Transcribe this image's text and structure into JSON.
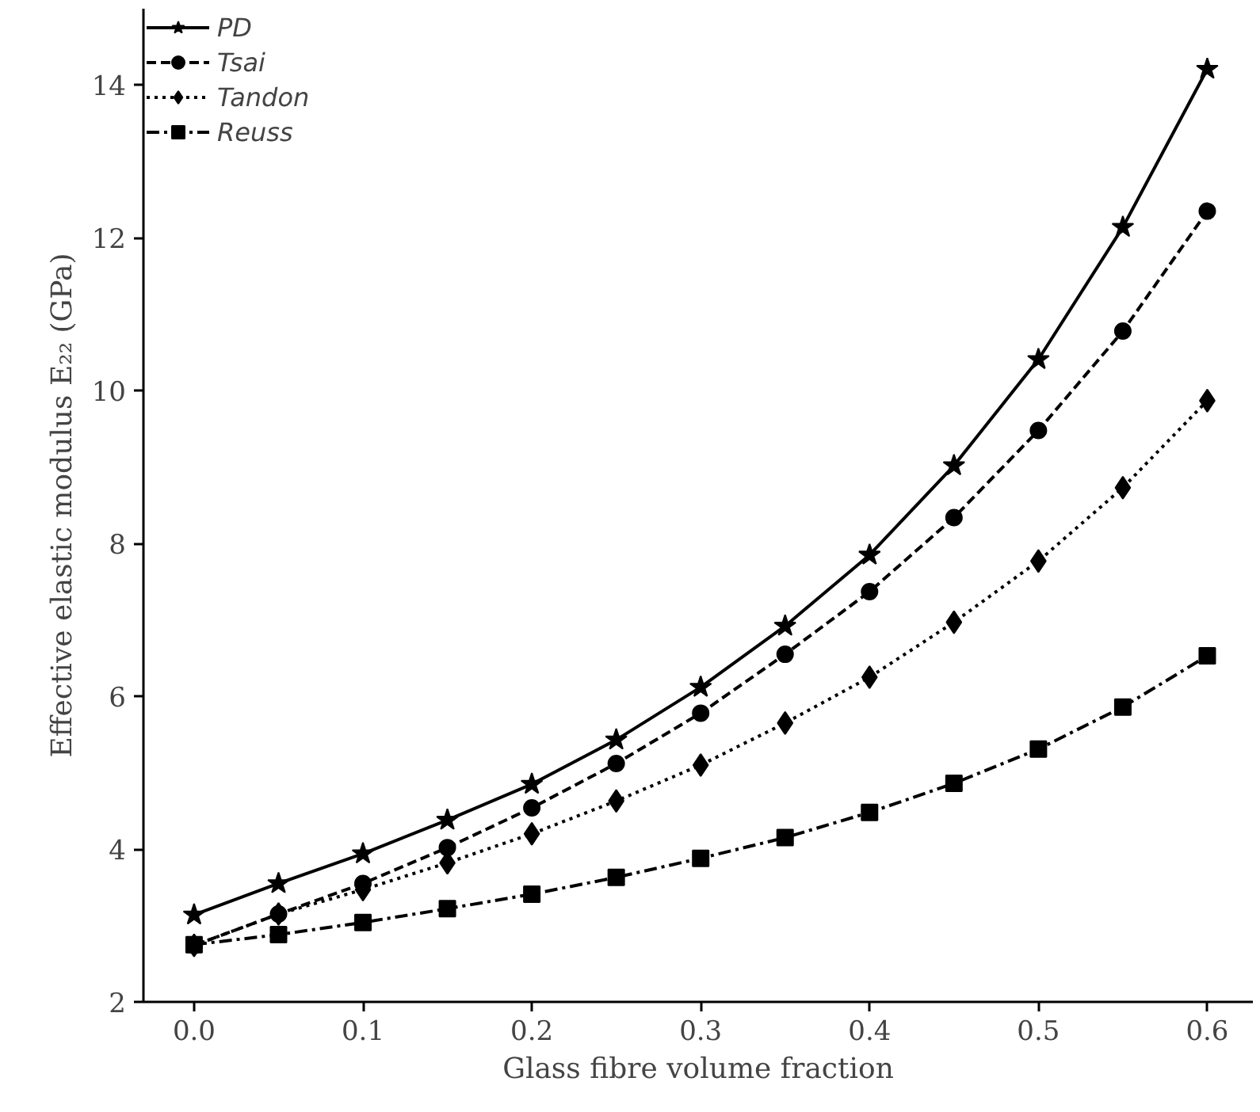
{
  "chart_data": {
    "type": "line",
    "xlabel": "Glass fibre volume fraction",
    "ylabel": "Effective elastic modulus E₂₂ (GPa)",
    "x": [
      0.0,
      0.05,
      0.1,
      0.15,
      0.2,
      0.25,
      0.3,
      0.35,
      0.4,
      0.45,
      0.5,
      0.55,
      0.6
    ],
    "xlim": [
      -0.03,
      0.627
    ],
    "xticks": [
      {
        "value": 0.0,
        "label": "0.0"
      },
      0.1,
      0.2,
      0.3,
      0.4,
      0.5,
      0.6
    ],
    "ylim": [
      2,
      15
    ],
    "yticks": [
      2,
      4,
      6,
      8,
      10,
      12,
      14
    ],
    "grid": false,
    "legend": "top left",
    "series": [
      {
        "name": "PD",
        "color": "#000000",
        "marker": "star",
        "line_style": "solid",
        "values": [
          3.14,
          3.55,
          3.94,
          4.38,
          4.85,
          5.43,
          6.12,
          6.92,
          7.85,
          9.02,
          10.41,
          12.14,
          14.21
        ]
      },
      {
        "name": "Tsai",
        "color": "#000000",
        "marker": "circle",
        "line_style": "dashed",
        "values": [
          2.74,
          3.15,
          3.55,
          4.02,
          4.54,
          5.12,
          5.78,
          6.55,
          7.37,
          8.34,
          9.48,
          10.78,
          12.35
        ]
      },
      {
        "name": "Tandon",
        "color": "#000000",
        "marker": "diamond",
        "line_style": "dotted",
        "values": [
          2.74,
          3.15,
          3.47,
          3.82,
          4.2,
          4.63,
          5.1,
          5.65,
          6.25,
          6.97,
          7.77,
          8.73,
          9.87
        ]
      },
      {
        "name": "Reuss",
        "color": "#000000",
        "marker": "square",
        "line_style": "dashdot",
        "values": [
          2.75,
          2.88,
          3.04,
          3.22,
          3.41,
          3.63,
          3.88,
          4.15,
          4.48,
          4.86,
          5.31,
          5.86,
          6.53
        ]
      }
    ]
  }
}
